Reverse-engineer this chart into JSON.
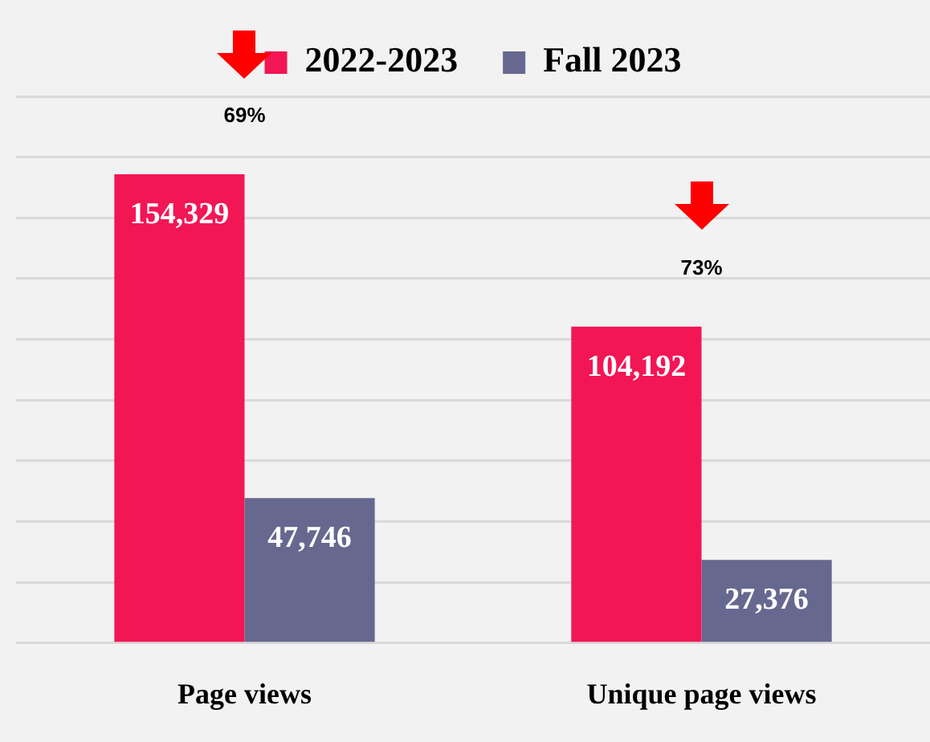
{
  "chart_data": {
    "type": "bar",
    "categories": [
      "Page views",
      "Unique page views"
    ],
    "series": [
      {
        "name": "2022-2023",
        "color": "#f21655",
        "values": [
          154329,
          104192
        ],
        "value_labels": [
          "154,329",
          "104,192"
        ]
      },
      {
        "name": "Fall 2023",
        "color": "#67688f",
        "values": [
          47746,
          27376
        ],
        "value_labels": [
          "47,746",
          "27,376"
        ]
      }
    ],
    "tick_labels": "x",
    "grid": "y",
    "legend": "top",
    "annotations": [
      "69%",
      "73%"
    ]
  }
}
